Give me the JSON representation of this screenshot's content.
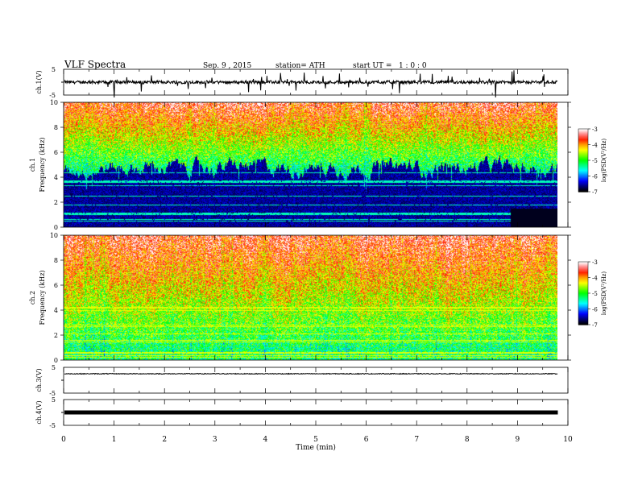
{
  "header": {
    "title": "VLF Spectra",
    "date": "Sep. 9 , 2015",
    "station": "station= ATH",
    "start_ut": "start UT =   1 : 0 : 0"
  },
  "chart_data": {
    "type": "heatmap",
    "x_axis": {
      "label": "Time (min)",
      "range": [
        0,
        10
      ],
      "ticks": [
        0,
        1,
        2,
        3,
        4,
        5,
        6,
        7,
        8,
        9,
        10
      ],
      "data_end": 9.8
    },
    "panels": [
      {
        "id": "ch1-waveform",
        "type": "line",
        "ylabel": "ch.1(V)",
        "ylim": [
          -5,
          5
        ],
        "ytick_labels": [
          "5",
          "-5"
        ],
        "baseline": 0,
        "activity": "bursty",
        "line_width": 1
      },
      {
        "id": "ch1-spectrogram",
        "type": "heatmap",
        "ylabel": "ch.1\nFrequency (kHz)",
        "ylim": [
          0,
          10
        ],
        "yticks": [
          0,
          2,
          4,
          6,
          8,
          10
        ],
        "color_scale": {
          "label": "log(PSD(V²/Hz)",
          "range": [
            -7,
            -3
          ],
          "ticks": [
            -7,
            -6,
            -5,
            -4,
            -3
          ]
        },
        "lower_edge_khz": 4.8
      },
      {
        "id": "ch2-spectrogram",
        "type": "heatmap",
        "ylabel": "ch.2\nFrequency (kHz)",
        "ylim": [
          0,
          10
        ],
        "yticks": [
          0,
          2,
          4,
          6,
          8,
          10
        ],
        "color_scale": {
          "label": "log(PSD(V²/Hz)",
          "range": [
            -7,
            -3
          ],
          "ticks": [
            -7,
            -6,
            -5,
            -4,
            -3
          ]
        },
        "lower_edge_khz": 1.0
      },
      {
        "id": "ch3-waveform",
        "type": "line",
        "ylabel": "ch.3(V)",
        "ylim": [
          -5,
          5
        ],
        "ytick_labels": [
          "5",
          "-5"
        ],
        "baseline": 2.5,
        "activity": "quiet",
        "line_width": 1
      },
      {
        "id": "ch4-waveform",
        "type": "line",
        "ylabel": "ch.4(V)",
        "ylim": [
          -5,
          5
        ],
        "ytick_labels": [
          "5",
          "-5"
        ],
        "baseline": 0,
        "activity": "flat",
        "line_width": 5
      }
    ],
    "colormap": [
      "#000000",
      "#00007a",
      "#0000ff",
      "#0080ff",
      "#00ffff",
      "#00ff80",
      "#00ff00",
      "#80ff00",
      "#ffff00",
      "#ffa000",
      "#ff2000",
      "#ff8080",
      "#ffffff"
    ]
  }
}
